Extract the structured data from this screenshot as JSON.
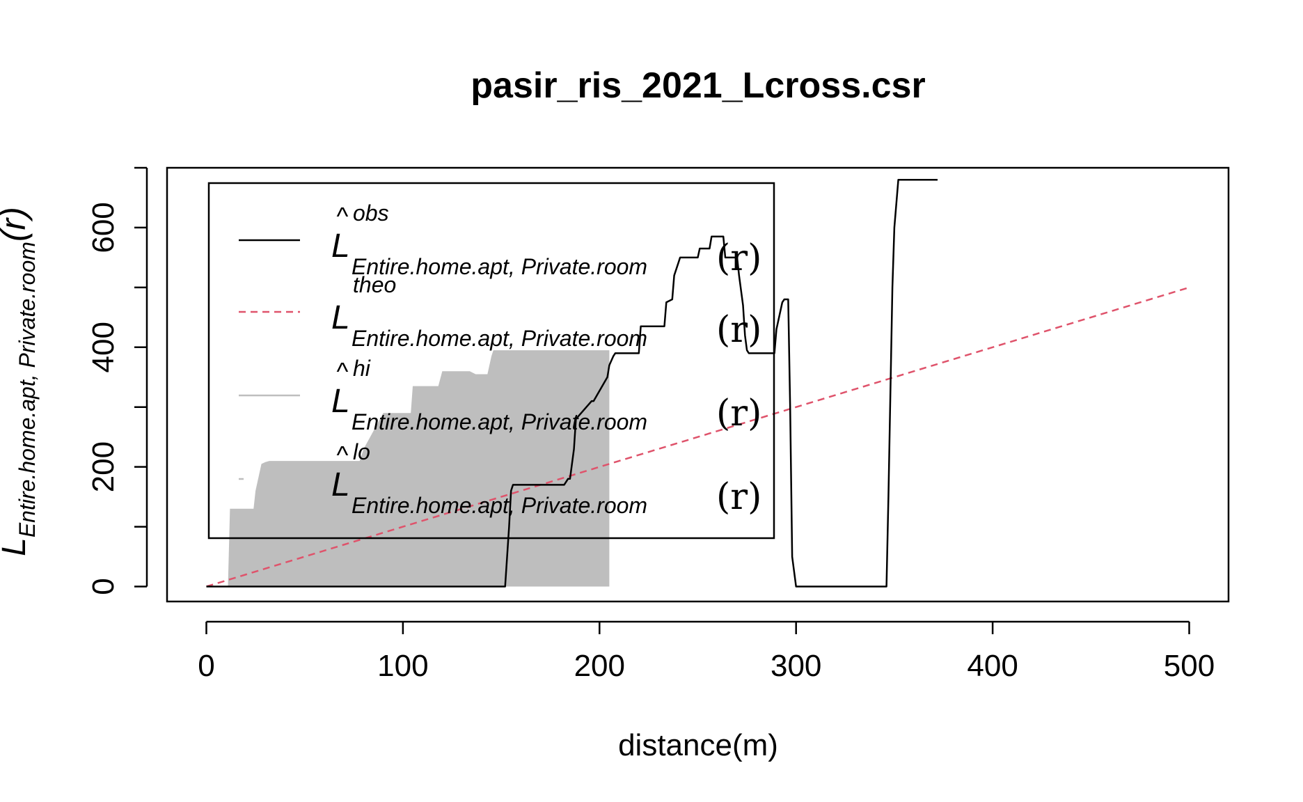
{
  "chart_data": {
    "type": "line",
    "title": "pasir_ris_2021_Lcross.csr",
    "xlabel": "distance(m)",
    "ylabel": {
      "main": "L",
      "subscript": "Entire.home.apt, Private.room",
      "suffix": "(r)"
    },
    "xlim": [
      -20,
      520
    ],
    "ylim": [
      -25,
      700
    ],
    "x_ticks": [
      0,
      100,
      200,
      300,
      400,
      500
    ],
    "x_tick_labels": [
      "0",
      "100",
      "200",
      "300",
      "400",
      "500"
    ],
    "y_ticks": [
      0,
      100,
      200,
      300,
      400,
      500,
      600,
      700
    ],
    "y_tick_labels": [
      "0",
      "",
      "200",
      "",
      "400",
      "",
      "600",
      ""
    ],
    "grid": false,
    "legend_position": "top-left",
    "legend": [
      {
        "key": "obs",
        "hat": true,
        "main": "L",
        "superscript": "obs",
        "subscript": "Entire.home.apt, Private.room",
        "suffix": "(r)",
        "style": "solid",
        "color": "#000000"
      },
      {
        "key": "theo",
        "hat": false,
        "main": "L",
        "superscript": "theo",
        "subscript": "Entire.home.apt, Private.room",
        "suffix": "(r)",
        "style": "dashed",
        "color": "#DF536B"
      },
      {
        "key": "hi",
        "hat": true,
        "main": "L",
        "superscript": "hi",
        "subscript": "Entire.home.apt, Private.room",
        "suffix": "(r)",
        "style": "solid",
        "color": "#BEBEBE"
      },
      {
        "key": "lo",
        "hat": true,
        "main": "L",
        "superscript": "lo",
        "subscript": "Entire.home.apt, Private.room",
        "suffix": "(r)",
        "style": "solid",
        "color": "#BEBEBE"
      }
    ],
    "series": [
      {
        "key": "obs",
        "color": "#000000",
        "style": "solid",
        "x": [
          0,
          152,
          154,
          155,
          156,
          182,
          184,
          185,
          187,
          188,
          196,
          197,
          204,
          205,
          207,
          208,
          220,
          221,
          233,
          234,
          237,
          238,
          240,
          241,
          250,
          251,
          256,
          257,
          263,
          264,
          270,
          271,
          273,
          274,
          275,
          276,
          289,
          290,
          293,
          294,
          296,
          297,
          298,
          300,
          346,
          347,
          349,
          350,
          352,
          353,
          372
        ],
        "y": [
          0,
          0,
          100,
          160,
          170,
          170,
          180,
          180,
          230,
          280,
          310,
          310,
          350,
          370,
          385,
          390,
          390,
          435,
          435,
          475,
          480,
          520,
          540,
          550,
          550,
          565,
          565,
          585,
          585,
          550,
          550,
          520,
          470,
          420,
          395,
          390,
          390,
          430,
          475,
          480,
          480,
          300,
          50,
          0,
          0,
          150,
          500,
          600,
          680,
          680,
          680
        ]
      },
      {
        "key": "theo",
        "color": "#DF536B",
        "style": "dashed",
        "x": [
          0,
          500
        ],
        "y": [
          0,
          500
        ]
      },
      {
        "key": "envelope",
        "color": "#BEBEBE",
        "fill": true,
        "x": [
          0,
          11,
          12,
          24,
          25,
          28,
          30,
          32,
          78,
          80,
          85,
          90,
          104,
          105,
          118,
          120,
          132,
          134,
          137,
          138,
          143,
          145,
          146,
          147,
          148,
          205
        ],
        "hi": [
          0,
          0,
          130,
          130,
          160,
          205,
          208,
          210,
          210,
          230,
          260,
          290,
          290,
          335,
          335,
          360,
          360,
          360,
          355,
          355,
          355,
          385,
          395,
          395,
          395,
          395
        ],
        "lo": [
          0,
          0,
          0,
          0,
          0,
          0,
          0,
          0,
          0,
          0,
          0,
          0,
          0,
          0,
          0,
          0,
          0,
          0,
          0,
          0,
          0,
          0,
          0,
          0,
          0,
          0
        ]
      }
    ]
  }
}
